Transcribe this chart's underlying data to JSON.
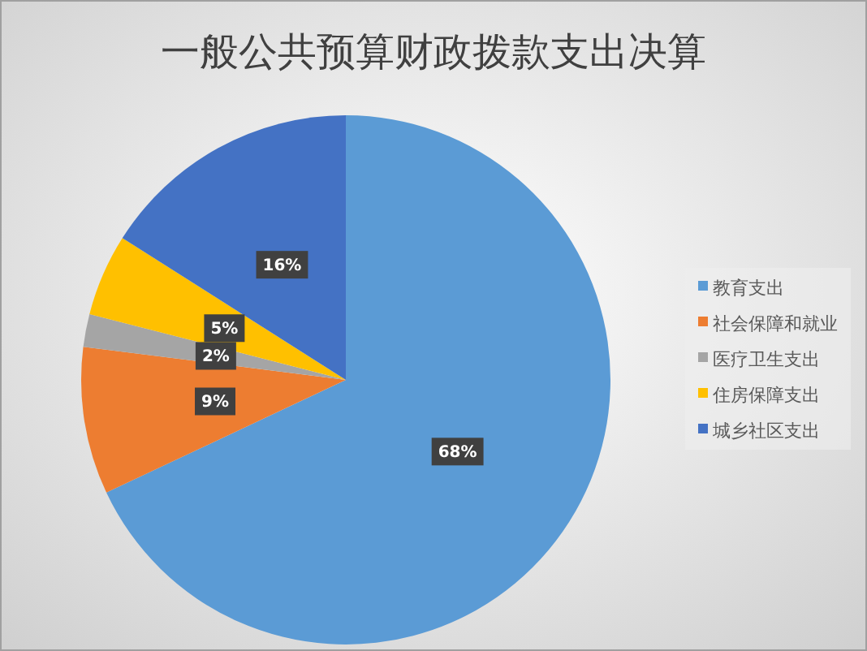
{
  "chart_data": {
    "type": "pie",
    "title": "一般公共预算财政拨款支出决算",
    "categories": [
      "教育支出",
      "社会保障和就业",
      "医疗卫生支出",
      "住房保障支出",
      "城乡社区支出"
    ],
    "values": [
      68,
      9,
      2,
      5,
      16
    ],
    "value_labels": [
      "68%",
      "9%",
      "2%",
      "5%",
      "16%"
    ],
    "colors": [
      "#5b9bd5",
      "#ed7d31",
      "#a5a5a5",
      "#ffc000",
      "#4472c4"
    ],
    "legend": "right"
  }
}
